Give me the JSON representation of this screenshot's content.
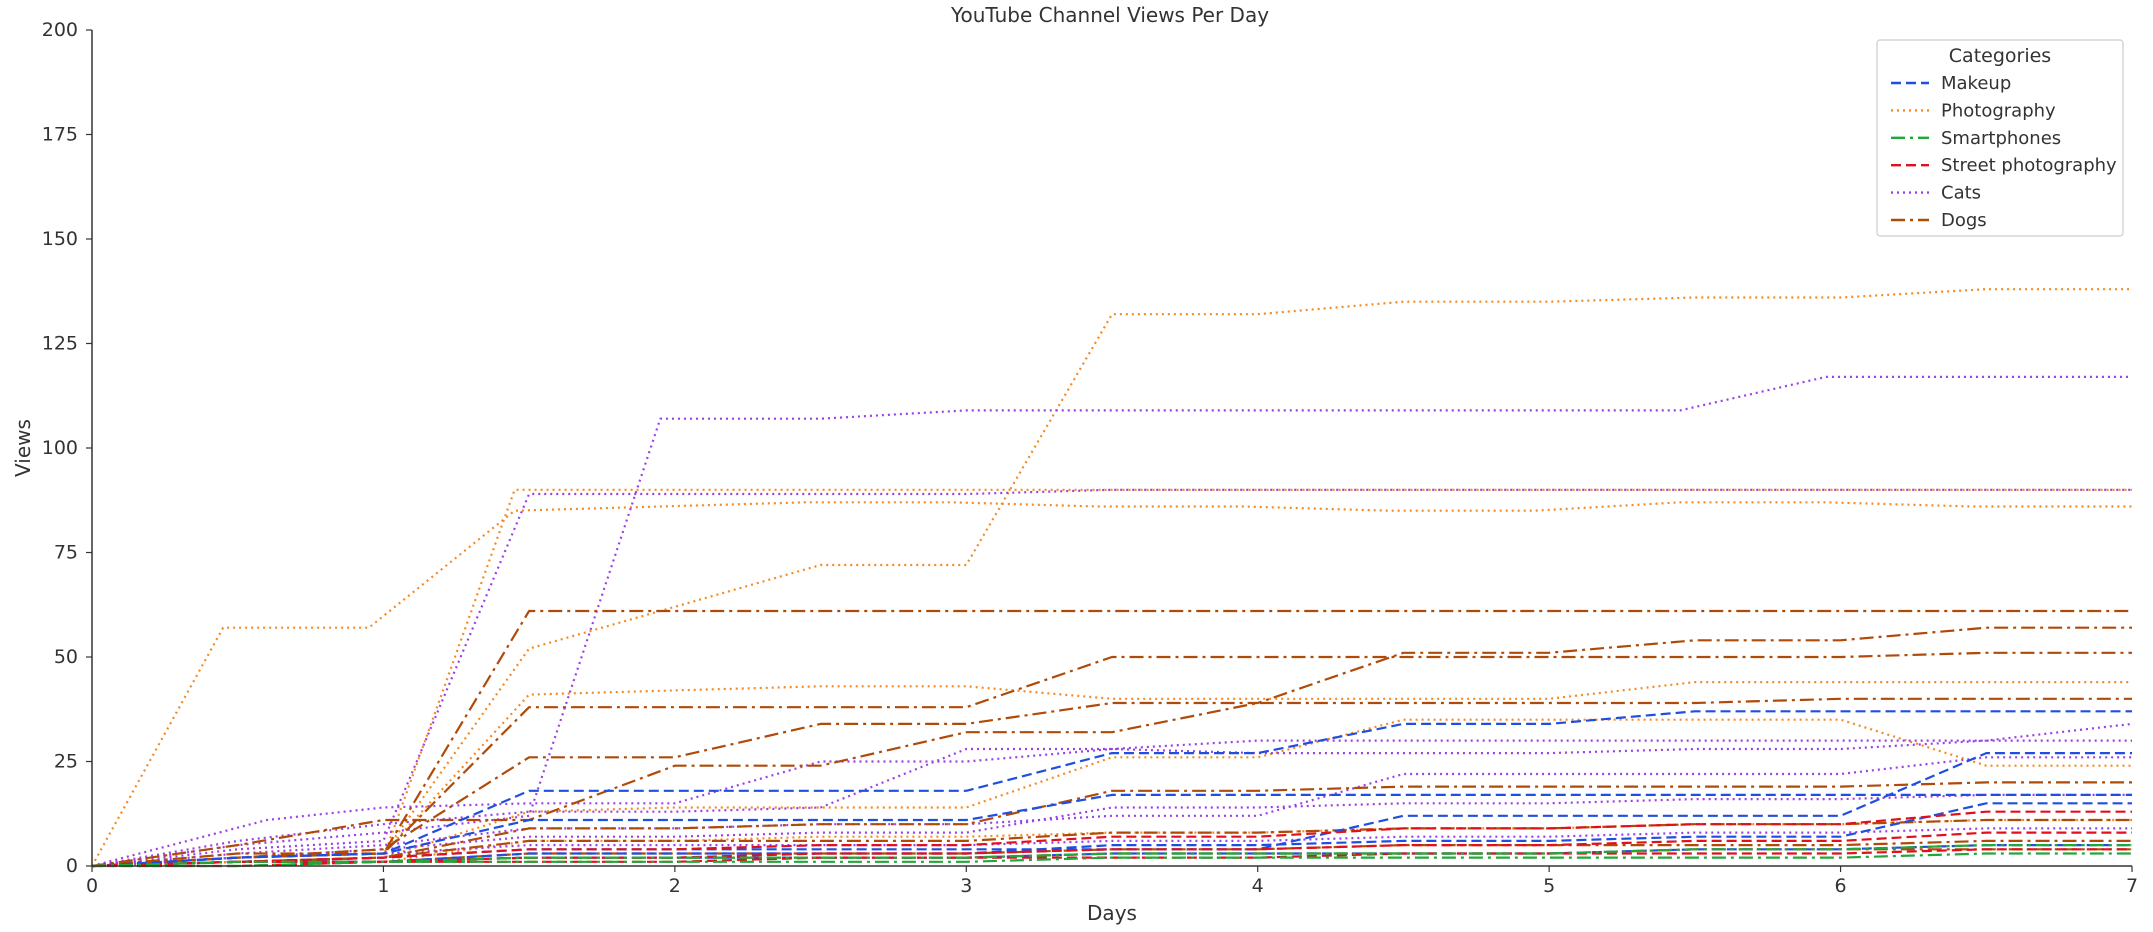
{
  "chart_data": {
    "type": "line",
    "title": "YouTube Channel Views Per Day",
    "xlabel": "Days",
    "ylabel": "Views",
    "xlim": [
      0,
      7
    ],
    "ylim": [
      0,
      200
    ],
    "xticks": [
      "0",
      "1",
      "2",
      "3",
      "4",
      "5",
      "6",
      "7"
    ],
    "yticks": [
      "0",
      "25",
      "50",
      "75",
      "100",
      "125",
      "150",
      "175",
      "200"
    ],
    "grid": false,
    "legend": {
      "title": "Categories",
      "placement": "top-right",
      "entries": [
        "Makeup",
        "Photography",
        "Smartphones",
        "Street photography",
        "Cats",
        "Dogs"
      ]
    },
    "categories": [
      {
        "name": "Makeup",
        "color": "#1f4fe0",
        "dash": "dashed"
      },
      {
        "name": "Photography",
        "color": "#f58a22",
        "dash": "dotted"
      },
      {
        "name": "Smartphones",
        "color": "#22a83a",
        "dash": "dashdot"
      },
      {
        "name": "Street photography",
        "color": "#e0101c",
        "dash": "dashed"
      },
      {
        "name": "Cats",
        "color": "#9b3fe8",
        "dash": "dotted"
      },
      {
        "name": "Dogs",
        "color": "#b04a08",
        "dash": "dashdot"
      }
    ],
    "series": [
      {
        "category": "Photography",
        "x": [
          0,
          0.45,
          0.95,
          1.45,
          1.95,
          2.45,
          2.95,
          3.45,
          3.95,
          4.45,
          4.95,
          5.45,
          5.95,
          6.45,
          7
        ],
        "values": [
          0,
          57,
          57,
          85,
          86,
          87,
          87,
          86,
          86,
          85,
          85,
          87,
          87,
          86,
          86
        ]
      },
      {
        "category": "Photography",
        "x": [
          0,
          0.5,
          1.0,
          1.5,
          2.0,
          2.5,
          3.0,
          3.5,
          4.0,
          4.5,
          5.0,
          5.5,
          6.0,
          6.5,
          7
        ],
        "values": [
          0,
          2,
          3,
          52,
          62,
          72,
          72,
          132,
          132,
          135,
          135,
          136,
          136,
          138,
          138
        ]
      },
      {
        "category": "Photography",
        "x": [
          0,
          0.5,
          1.0,
          1.45,
          2.0,
          2.5,
          3.0,
          3.5,
          4.0,
          4.5,
          5.0,
          5.5,
          6.0,
          6.5,
          7
        ],
        "values": [
          0,
          1,
          2,
          90,
          90,
          90,
          90,
          90,
          90,
          90,
          90,
          90,
          90,
          90,
          90
        ]
      },
      {
        "category": "Photography",
        "x": [
          0,
          0.5,
          1.0,
          1.5,
          2.0,
          2.5,
          3.0,
          3.5,
          4.0,
          4.5,
          5.0,
          5.5,
          6.0,
          6.5,
          7
        ],
        "values": [
          0,
          2,
          3,
          41,
          42,
          43,
          43,
          40,
          40,
          40,
          40,
          44,
          44,
          44,
          44
        ]
      },
      {
        "category": "Photography",
        "x": [
          0,
          0.5,
          1.0,
          1.5,
          2.0,
          2.5,
          3.0,
          3.5,
          4.0,
          4.5,
          5.0,
          5.5,
          6.0,
          6.5,
          7
        ],
        "values": [
          0,
          1,
          2,
          13,
          14,
          14,
          14,
          26,
          26,
          35,
          35,
          35,
          35,
          24,
          24
        ]
      },
      {
        "category": "Photography",
        "x": [
          0,
          0.5,
          1.0,
          1.5,
          2.0,
          2.5,
          3.0,
          3.5,
          4.0,
          4.5,
          5.0,
          5.5,
          6.0,
          6.5,
          7
        ],
        "values": [
          0,
          1,
          1,
          6,
          6,
          7,
          7,
          8,
          8,
          9,
          9,
          10,
          10,
          11,
          11
        ]
      },
      {
        "category": "Cats",
        "x": [
          0,
          0.5,
          1.0,
          1.5,
          1.95,
          2.5,
          3.0,
          3.5,
          4.0,
          4.5,
          5.0,
          5.45,
          5.95,
          6.5,
          7
        ],
        "values": [
          0,
          5,
          8,
          12,
          107,
          107,
          109,
          109,
          109,
          109,
          109,
          109,
          117,
          117,
          117
        ]
      },
      {
        "category": "Cats",
        "x": [
          0,
          0.5,
          1.0,
          1.5,
          2.0,
          2.5,
          3.0,
          3.5,
          4.0,
          4.5,
          5.0,
          5.5,
          6.0,
          6.5,
          7
        ],
        "values": [
          0,
          4,
          6,
          89,
          89,
          89,
          89,
          90,
          90,
          90,
          90,
          90,
          90,
          90,
          90
        ]
      },
      {
        "category": "Cats",
        "x": [
          0,
          0.6,
          1.0,
          1.5,
          2.0,
          2.5,
          3.0,
          3.5,
          4.0,
          4.5,
          5.0,
          5.5,
          6.0,
          6.5,
          7
        ],
        "values": [
          0,
          11,
          14,
          15,
          15,
          25,
          25,
          28,
          30,
          30,
          30,
          30,
          30,
          30,
          30
        ]
      },
      {
        "category": "Cats",
        "x": [
          0,
          0.5,
          1.0,
          1.5,
          2.0,
          2.5,
          3.0,
          3.5,
          4.0,
          4.5,
          5.0,
          5.5,
          6.0,
          6.5,
          7
        ],
        "values": [
          0,
          6,
          10,
          13,
          13,
          14,
          28,
          28,
          27,
          27,
          27,
          28,
          28,
          30,
          34
        ]
      },
      {
        "category": "Cats",
        "x": [
          0,
          0.5,
          1.0,
          1.5,
          2.0,
          2.5,
          3.0,
          3.5,
          4.0,
          4.5,
          5.0,
          5.5,
          6.0,
          6.5,
          7
        ],
        "values": [
          0,
          3,
          5,
          9,
          9,
          10,
          10,
          12,
          12,
          22,
          22,
          22,
          22,
          26,
          26
        ]
      },
      {
        "category": "Cats",
        "x": [
          0,
          0.5,
          1.0,
          1.5,
          2.0,
          2.5,
          3.0,
          3.5,
          4.0,
          4.5,
          5.0,
          5.5,
          6.0,
          6.5,
          7
        ],
        "values": [
          0,
          2,
          4,
          7,
          7,
          8,
          8,
          14,
          14,
          15,
          15,
          16,
          16,
          17,
          17
        ]
      },
      {
        "category": "Cats",
        "x": [
          0,
          0.5,
          1.0,
          1.5,
          2.0,
          2.5,
          3.0,
          3.5,
          4.0,
          4.5,
          5.0,
          5.5,
          6.0,
          6.5,
          7
        ],
        "values": [
          0,
          2,
          3,
          5,
          5,
          5,
          5,
          6,
          6,
          7,
          7,
          8,
          8,
          9,
          9
        ]
      },
      {
        "category": "Dogs",
        "x": [
          0,
          0.5,
          1.0,
          1.5,
          2.0,
          2.5,
          3.0,
          3.5,
          4.0,
          4.5,
          5.0,
          5.5,
          6.0,
          6.5,
          7
        ],
        "values": [
          0,
          3,
          3,
          61,
          61,
          61,
          61,
          61,
          61,
          61,
          61,
          61,
          61,
          61,
          61
        ]
      },
      {
        "category": "Dogs",
        "x": [
          0,
          0.5,
          1.0,
          1.5,
          2.0,
          2.5,
          3.0,
          3.5,
          4.0,
          4.5,
          5.0,
          5.5,
          6.0,
          6.5,
          7
        ],
        "values": [
          0,
          2,
          3,
          38,
          38,
          38,
          38,
          50,
          50,
          50,
          50,
          50,
          50,
          51,
          51
        ]
      },
      {
        "category": "Dogs",
        "x": [
          0,
          0.5,
          1.0,
          1.5,
          2.0,
          2.5,
          3.0,
          3.5,
          4.0,
          4.5,
          5.0,
          5.5,
          6.0,
          6.5,
          7
        ],
        "values": [
          0,
          2,
          4,
          26,
          26,
          34,
          34,
          39,
          39,
          51,
          51,
          54,
          54,
          57,
          57
        ]
      },
      {
        "category": "Dogs",
        "x": [
          0,
          0.5,
          1.0,
          1.5,
          2.0,
          2.5,
          3.0,
          3.5,
          4.0,
          4.5,
          5.0,
          5.5,
          6.0,
          6.5,
          7
        ],
        "values": [
          0,
          5,
          11,
          11,
          24,
          24,
          32,
          32,
          39,
          39,
          39,
          39,
          40,
          40,
          40
        ]
      },
      {
        "category": "Dogs",
        "x": [
          0,
          0.5,
          1.0,
          1.5,
          2.0,
          2.5,
          3.0,
          3.5,
          4.0,
          4.5,
          5.0,
          5.5,
          6.0,
          6.5,
          7
        ],
        "values": [
          0,
          1,
          2,
          9,
          9,
          10,
          10,
          18,
          18,
          19,
          19,
          19,
          19,
          20,
          20
        ]
      },
      {
        "category": "Dogs",
        "x": [
          0,
          0.5,
          1.0,
          1.5,
          2.0,
          2.5,
          3.0,
          3.5,
          4.0,
          4.5,
          5.0,
          5.5,
          6.0,
          6.5,
          7
        ],
        "values": [
          0,
          1,
          2,
          6,
          6,
          6,
          6,
          8,
          8,
          9,
          9,
          10,
          10,
          11,
          11
        ]
      },
      {
        "category": "Dogs",
        "x": [
          0,
          0.5,
          1.0,
          1.5,
          2.0,
          2.5,
          3.0,
          3.5,
          4.0,
          4.5,
          5.0,
          5.5,
          6.0,
          6.5,
          7
        ],
        "values": [
          0,
          1,
          1,
          3,
          3,
          3,
          3,
          4,
          4,
          5,
          5,
          5,
          5,
          6,
          6
        ]
      },
      {
        "category": "Dogs",
        "x": [
          0,
          0.5,
          1.0,
          1.5,
          2.0,
          2.5,
          3.0,
          3.5,
          4.0,
          4.5,
          5.0,
          5.5,
          6.0,
          6.5,
          7
        ],
        "values": [
          0,
          1,
          1,
          2,
          2,
          2,
          2,
          3,
          3,
          3,
          3,
          4,
          4,
          4,
          4
        ]
      },
      {
        "category": "Makeup",
        "x": [
          0,
          0.5,
          1.0,
          1.5,
          2.0,
          2.5,
          3.0,
          3.5,
          4.0,
          4.5,
          5.0,
          5.5,
          6.0,
          6.5,
          7
        ],
        "values": [
          0,
          2,
          3,
          18,
          18,
          18,
          18,
          27,
          27,
          34,
          34,
          37,
          37,
          37,
          37
        ]
      },
      {
        "category": "Makeup",
        "x": [
          0,
          0.5,
          1.0,
          1.5,
          2.0,
          2.5,
          3.0,
          3.5,
          4.0,
          4.5,
          5.0,
          5.5,
          6.0,
          6.5,
          7
        ],
        "values": [
          0,
          2,
          3,
          11,
          11,
          11,
          11,
          17,
          17,
          17,
          17,
          17,
          17,
          17,
          17
        ]
      },
      {
        "category": "Makeup",
        "x": [
          0,
          0.5,
          1.0,
          1.5,
          2.0,
          2.5,
          3.0,
          3.5,
          4.0,
          4.5,
          5.0,
          5.5,
          6.0,
          6.5,
          7
        ],
        "values": [
          0,
          1,
          2,
          4,
          4,
          4,
          4,
          4,
          4,
          12,
          12,
          12,
          12,
          27,
          27
        ]
      },
      {
        "category": "Makeup",
        "x": [
          0,
          0.5,
          1.0,
          1.5,
          2.0,
          2.5,
          3.0,
          3.5,
          4.0,
          4.5,
          5.0,
          5.5,
          6.0,
          6.5,
          7
        ],
        "values": [
          0,
          1,
          1,
          3,
          3,
          3,
          3,
          5,
          5,
          6,
          6,
          7,
          7,
          15,
          15
        ]
      },
      {
        "category": "Makeup",
        "x": [
          0,
          0.5,
          1.0,
          1.5,
          2.0,
          2.5,
          3.0,
          3.5,
          4.0,
          4.5,
          5.0,
          5.5,
          6.0,
          6.5,
          7
        ],
        "values": [
          0,
          1,
          1,
          2,
          2,
          2,
          2,
          3,
          3,
          3,
          3,
          4,
          4,
          5,
          5
        ]
      },
      {
        "category": "Street photography",
        "x": [
          0,
          0.5,
          1.0,
          1.5,
          2.0,
          2.5,
          3.0,
          3.5,
          4.0,
          4.5,
          5.0,
          5.5,
          6.0,
          6.5,
          7
        ],
        "values": [
          0,
          1,
          2,
          4,
          4,
          5,
          5,
          7,
          7,
          9,
          9,
          10,
          10,
          13,
          13
        ]
      },
      {
        "category": "Street photography",
        "x": [
          0,
          0.5,
          1.0,
          1.5,
          2.0,
          2.5,
          3.0,
          3.5,
          4.0,
          4.5,
          5.0,
          5.5,
          6.0,
          6.5,
          7
        ],
        "values": [
          0,
          1,
          1,
          2,
          2,
          3,
          3,
          4,
          4,
          5,
          5,
          6,
          6,
          8,
          8
        ]
      },
      {
        "category": "Street photography",
        "x": [
          0,
          0.5,
          1.0,
          1.5,
          2.0,
          2.5,
          3.0,
          3.5,
          4.0,
          4.5,
          5.0,
          5.5,
          6.0,
          6.5,
          7
        ],
        "values": [
          0,
          0,
          1,
          1,
          1,
          2,
          2,
          2,
          2,
          3,
          3,
          3,
          3,
          4,
          4
        ]
      },
      {
        "category": "Smartphones",
        "x": [
          0,
          0.5,
          1.0,
          1.5,
          2.0,
          2.5,
          3.0,
          3.5,
          4.0,
          4.5,
          5.0,
          5.5,
          6.0,
          6.5,
          7
        ],
        "values": [
          0,
          1,
          1,
          2,
          2,
          2,
          2,
          3,
          3,
          3,
          3,
          4,
          4,
          5,
          5
        ]
      },
      {
        "category": "Smartphones",
        "x": [
          0,
          0.5,
          1.0,
          1.5,
          2.0,
          2.5,
          3.0,
          3.5,
          4.0,
          4.5,
          5.0,
          5.5,
          6.0,
          6.5,
          7
        ],
        "values": [
          0,
          0,
          1,
          1,
          1,
          1,
          1,
          2,
          2,
          2,
          2,
          2,
          2,
          3,
          3
        ]
      }
    ]
  }
}
